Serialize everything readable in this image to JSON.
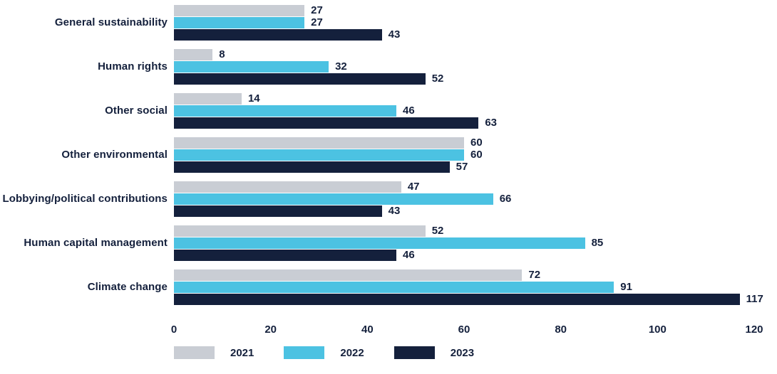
{
  "chart_data": {
    "type": "bar",
    "orientation": "horizontal",
    "title": "",
    "xlabel": "",
    "ylabel": "",
    "grid": false,
    "legend_position": "bottom",
    "xlim": [
      0,
      120
    ],
    "x_ticks": [
      0,
      20,
      40,
      60,
      80,
      100,
      120
    ],
    "categories": [
      "General sustainability",
      "Human rights",
      "Other social",
      "Other environmental",
      "Lobbying/political contributions",
      "Human capital management",
      "Climate change"
    ],
    "series": [
      {
        "name": "2021",
        "color": "#c9cdd4",
        "values": [
          27,
          8,
          14,
          60,
          47,
          52,
          72
        ]
      },
      {
        "name": "2022",
        "color": "#4cc2e2",
        "values": [
          27,
          32,
          46,
          60,
          66,
          85,
          91
        ]
      },
      {
        "name": "2023",
        "color": "#14203c",
        "values": [
          43,
          52,
          63,
          57,
          43,
          46,
          117
        ]
      }
    ]
  },
  "colors": {
    "text": "#14203c",
    "background": "#ffffff"
  }
}
